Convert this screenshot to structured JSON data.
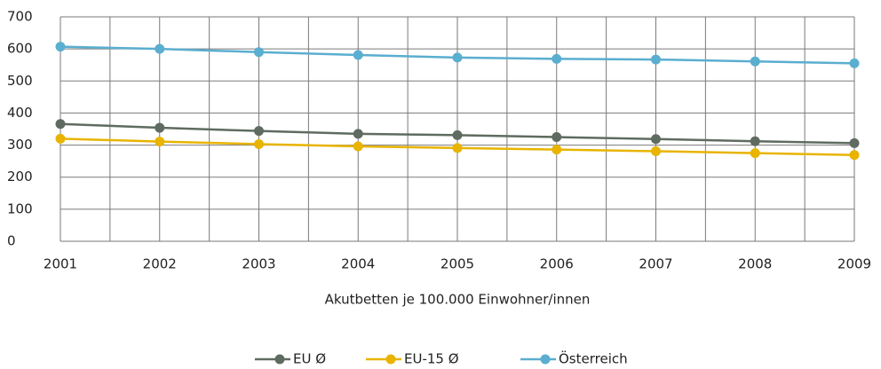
{
  "chart_data": {
    "type": "line",
    "x": [
      2001,
      2002,
      2003,
      2004,
      2005,
      2006,
      2007,
      2008,
      2009
    ],
    "series": [
      {
        "name": "EU Ø",
        "color": "#5f6b60",
        "values": [
          366,
          354,
          344,
          335,
          331,
          325,
          319,
          312,
          306
        ]
      },
      {
        "name": "EU-15 Ø",
        "color": "#e8b400",
        "values": [
          320,
          311,
          303,
          296,
          291,
          286,
          281,
          275,
          269
        ]
      },
      {
        "name": "Österreich",
        "color": "#5aaed0",
        "values": [
          607,
          600,
          590,
          581,
          573,
          569,
          567,
          561,
          555
        ]
      }
    ],
    "xlim": [
      2001,
      2009
    ],
    "xticks": [
      2001,
      2002,
      2003,
      2004,
      2005,
      2006,
      2007,
      2008,
      2009
    ],
    "ylim": [
      0,
      700
    ],
    "yticks": [
      0,
      100,
      200,
      300,
      400,
      500,
      600,
      700
    ],
    "xlabel": "Akutbetten je 100.000 Einwohner/innen",
    "grid": true,
    "legend": "bottom"
  }
}
